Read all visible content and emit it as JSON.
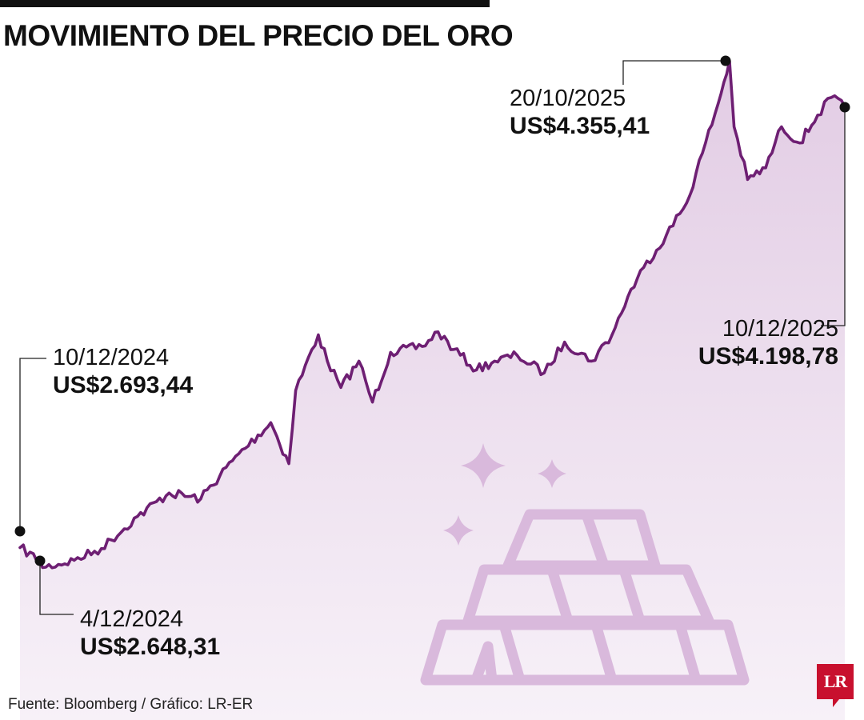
{
  "title": "MOVIMIENTO DEL PRECIO DEL ORO",
  "source": "Fuente: Bloomberg / Gráfico: LR-ER",
  "logo": "LR",
  "colors": {
    "line": "#6e1f73",
    "area_top": "#e2cce4",
    "area_bottom": "#f7f1f8",
    "illustration": "#d9b9dc",
    "accent": "#c8102e",
    "text": "#111111"
  },
  "illustration": {
    "icons": [
      "gold-bars-icon",
      "sparkle-icon"
    ]
  },
  "chart_data": {
    "type": "area",
    "title": "MOVIMIENTO DEL PRECIO DEL ORO",
    "xlabel": "",
    "ylabel": "",
    "unit": "US$",
    "grid": false,
    "axes_visible": false,
    "xlim": [
      "2024-12-04",
      "2025-12-10"
    ],
    "ylim": [
      2580,
      4400
    ],
    "series": [
      {
        "x": [
          "2024-12-04",
          "2024-12-10",
          "2024-12-20",
          "2025-01-03",
          "2025-01-15",
          "2025-01-31",
          "2025-02-14",
          "2025-02-28",
          "2025-03-14",
          "2025-03-31",
          "2025-04-08",
          "2025-04-11",
          "2025-04-21",
          "2025-04-25",
          "2025-05-01",
          "2025-05-09",
          "2025-05-15",
          "2025-05-23",
          "2025-06-06",
          "2025-06-13",
          "2025-06-20",
          "2025-06-30",
          "2025-07-08",
          "2025-07-18",
          "2025-07-30",
          "2025-08-08",
          "2025-08-20",
          "2025-08-29",
          "2025-09-05",
          "2025-09-12",
          "2025-09-22",
          "2025-10-01",
          "2025-10-08",
          "2025-10-15",
          "2025-10-20",
          "2025-10-22",
          "2025-10-28",
          "2025-11-05",
          "2025-11-12",
          "2025-11-20",
          "2025-11-28",
          "2025-12-04",
          "2025-12-10"
        ],
        "values": [
          2648.31,
          2693.44,
          2625,
          2650,
          2690,
          2800,
          2880,
          2860,
          2990,
          3120,
          2980,
          3230,
          3420,
          3330,
          3240,
          3330,
          3190,
          3360,
          3380,
          3430,
          3370,
          3300,
          3330,
          3350,
          3290,
          3395,
          3330,
          3420,
          3550,
          3650,
          3760,
          3870,
          4040,
          4210,
          4355.41,
          4130,
          3950,
          3990,
          4130,
          4075,
          4170,
          4230,
          4198.78
        ]
      }
    ],
    "annotations": [
      {
        "date": "10/12/2024",
        "value": "US$2.693,44"
      },
      {
        "date": "4/12/2024",
        "value": "US$2.648,31"
      },
      {
        "date": "20/10/2025",
        "value": "US$4.355,41"
      },
      {
        "date": "10/12/2025",
        "value": "US$4.198,78"
      }
    ]
  }
}
